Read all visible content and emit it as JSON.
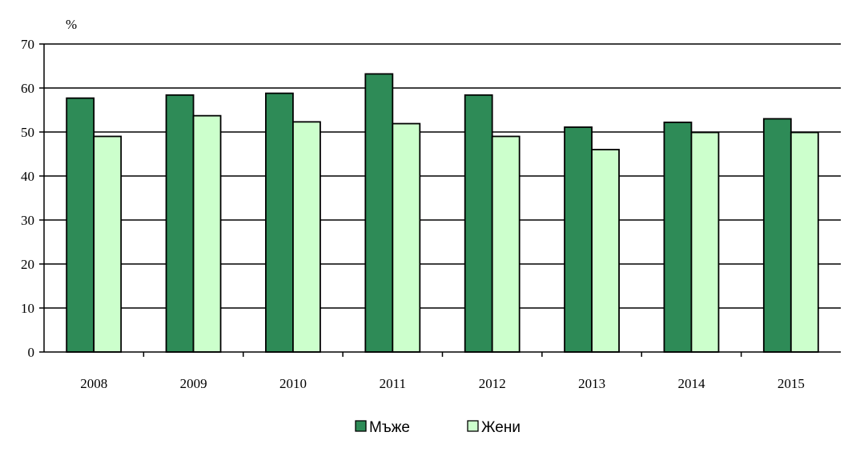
{
  "chart_data": {
    "type": "bar",
    "unit_label": "%",
    "categories": [
      "2008",
      "2009",
      "2010",
      "2011",
      "2012",
      "2013",
      "2014",
      "2015"
    ],
    "series": [
      {
        "name": "Мъже",
        "color": "#2e8b57",
        "values": [
          57.7,
          58.4,
          58.8,
          63.2,
          58.4,
          51.1,
          52.2,
          53.0
        ]
      },
      {
        "name": "Жени",
        "color": "#ccffcc",
        "values": [
          49.0,
          53.7,
          52.3,
          51.9,
          49.0,
          46.0,
          49.9,
          49.9
        ]
      }
    ],
    "ylim": [
      0,
      70
    ],
    "yticks": [
      0,
      10,
      20,
      30,
      40,
      50,
      60,
      70
    ],
    "grid": true,
    "legend_position": "bottom-center"
  }
}
